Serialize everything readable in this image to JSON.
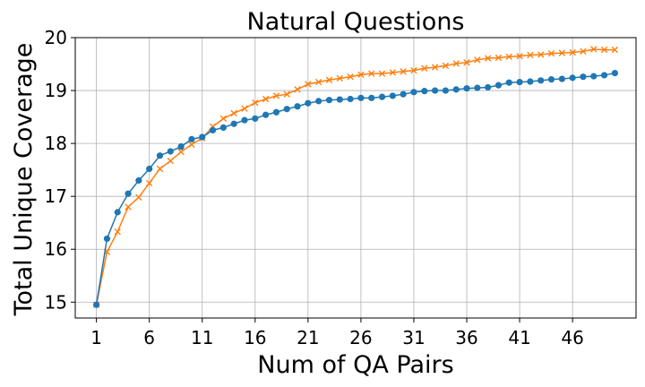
{
  "chart_data": {
    "type": "line",
    "title": "Natural Questions",
    "xlabel": "Num of QA Pairs",
    "ylabel": "Total Unique Coverage",
    "xlim": [
      -1,
      52
    ],
    "ylim": [
      14.7,
      20.0
    ],
    "xticks": [
      1,
      6,
      11,
      16,
      21,
      26,
      31,
      36,
      41,
      46
    ],
    "yticks": [
      15,
      16,
      17,
      18,
      19,
      20
    ],
    "grid": true,
    "x": [
      1,
      2,
      3,
      4,
      5,
      6,
      7,
      8,
      9,
      10,
      11,
      12,
      13,
      14,
      15,
      16,
      17,
      18,
      19,
      20,
      21,
      22,
      23,
      24,
      25,
      26,
      27,
      28,
      29,
      30,
      31,
      32,
      33,
      34,
      35,
      36,
      37,
      38,
      39,
      40,
      41,
      42,
      43,
      44,
      45,
      46,
      47,
      48,
      49,
      50
    ],
    "series": [
      {
        "color": "#1f77b4",
        "marker": "circle",
        "values": [
          14.95,
          16.2,
          16.7,
          17.05,
          17.3,
          17.52,
          17.77,
          17.85,
          17.94,
          18.08,
          18.12,
          18.25,
          18.3,
          18.37,
          18.44,
          18.47,
          18.54,
          18.59,
          18.65,
          18.7,
          18.76,
          18.8,
          18.82,
          18.83,
          18.84,
          18.86,
          18.86,
          18.88,
          18.9,
          18.93,
          18.97,
          18.99,
          19.0,
          19.0,
          19.02,
          19.04,
          19.05,
          19.06,
          19.1,
          19.15,
          19.16,
          19.17,
          19.19,
          19.21,
          19.22,
          19.24,
          19.26,
          19.27,
          19.29,
          19.33
        ]
      },
      {
        "color": "#ff7f0e",
        "marker": "x",
        "values": [
          14.95,
          15.95,
          16.33,
          16.8,
          16.98,
          17.25,
          17.52,
          17.67,
          17.84,
          17.98,
          18.1,
          18.32,
          18.47,
          18.57,
          18.66,
          18.77,
          18.84,
          18.9,
          18.93,
          19.02,
          19.12,
          19.16,
          19.2,
          19.23,
          19.26,
          19.3,
          19.32,
          19.32,
          19.34,
          19.36,
          19.38,
          19.42,
          19.44,
          19.47,
          19.51,
          19.53,
          19.58,
          19.61,
          19.62,
          19.64,
          19.65,
          19.67,
          19.68,
          19.7,
          19.71,
          19.72,
          19.74,
          19.78,
          19.77,
          19.77
        ]
      }
    ]
  }
}
